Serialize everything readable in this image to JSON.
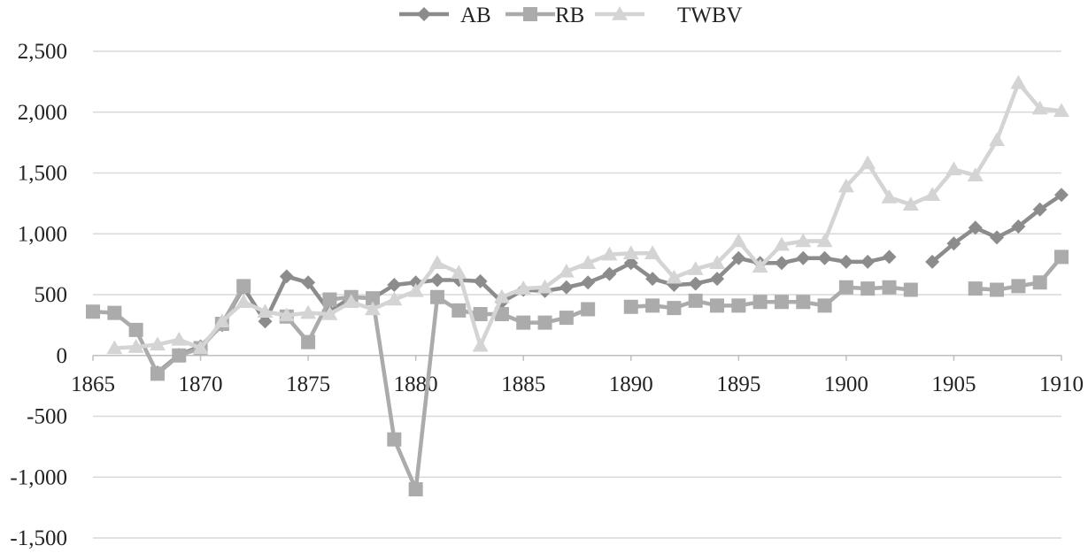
{
  "chart_data": {
    "type": "line",
    "xlim": [
      1865,
      1910
    ],
    "ylim": [
      -1500,
      2500
    ],
    "x_ticks": [
      1865,
      1870,
      1875,
      1880,
      1885,
      1890,
      1895,
      1900,
      1905,
      1910
    ],
    "x_tick_labels": [
      "1865",
      "1870",
      "1875",
      "1880",
      "1885",
      "1890",
      "1895",
      "1900",
      "1905",
      "1910"
    ],
    "y_ticks": [
      -1500,
      -1000,
      -500,
      0,
      500,
      1000,
      1500,
      2000,
      2500
    ],
    "y_tick_labels": [
      "-1,500",
      "-1,000",
      "-500",
      "0",
      "500",
      "1,000",
      "1,500",
      "2,000",
      "2,500"
    ],
    "grid": "horizontal",
    "legend_position": "top-center",
    "series": [
      {
        "name": "AB",
        "marker": "diamond",
        "color": "#8c8c8c",
        "points": [
          [
            1868,
            -140
          ],
          [
            1869,
            5
          ],
          [
            1870,
            75
          ],
          [
            1871,
            250
          ],
          [
            1872,
            560
          ],
          [
            1873,
            280
          ],
          [
            1874,
            650
          ],
          [
            1875,
            600
          ],
          [
            1876,
            360
          ],
          [
            1877,
            480
          ],
          [
            1878,
            470
          ],
          [
            1879,
            580
          ],
          [
            1880,
            600
          ],
          [
            1881,
            620
          ],
          [
            1882,
            620
          ],
          [
            1883,
            610
          ],
          [
            1884,
            440
          ],
          [
            1885,
            540
          ],
          [
            1886,
            530
          ],
          [
            1887,
            560
          ],
          [
            1888,
            600
          ],
          [
            1889,
            670
          ],
          [
            1890,
            760
          ],
          [
            1891,
            630
          ],
          [
            1892,
            580
          ],
          [
            1893,
            590
          ],
          [
            1894,
            630
          ],
          [
            1895,
            800
          ],
          [
            1896,
            760
          ],
          [
            1897,
            760
          ],
          [
            1898,
            800
          ],
          [
            1899,
            800
          ],
          [
            1900,
            770
          ],
          [
            1901,
            770
          ],
          [
            1902,
            810
          ],
          null,
          [
            1904,
            770
          ],
          [
            1905,
            920
          ],
          [
            1906,
            1050
          ],
          [
            1907,
            970
          ],
          [
            1908,
            1060
          ],
          [
            1909,
            1200
          ],
          [
            1910,
            1320
          ]
        ]
      },
      {
        "name": "RB",
        "marker": "square",
        "color": "#ababab",
        "points": [
          [
            1865,
            360
          ],
          [
            1866,
            350
          ],
          [
            1867,
            210
          ],
          [
            1868,
            -150
          ],
          [
            1869,
            0
          ],
          [
            1870,
            60
          ],
          [
            1871,
            260
          ],
          [
            1872,
            570
          ],
          null,
          [
            1874,
            320
          ],
          [
            1875,
            110
          ],
          [
            1876,
            460
          ],
          [
            1877,
            480
          ],
          [
            1878,
            470
          ],
          [
            1879,
            -690
          ],
          [
            1880,
            -1100
          ],
          [
            1881,
            480
          ],
          [
            1882,
            370
          ],
          [
            1883,
            340
          ],
          [
            1884,
            340
          ],
          [
            1885,
            270
          ],
          [
            1886,
            270
          ],
          [
            1887,
            310
          ],
          [
            1888,
            380
          ],
          null,
          [
            1890,
            400
          ],
          [
            1891,
            410
          ],
          [
            1892,
            390
          ],
          [
            1893,
            450
          ],
          [
            1894,
            410
          ],
          [
            1895,
            410
          ],
          [
            1896,
            440
          ],
          [
            1897,
            440
          ],
          [
            1898,
            440
          ],
          [
            1899,
            410
          ],
          [
            1900,
            560
          ],
          [
            1901,
            550
          ],
          [
            1902,
            560
          ],
          [
            1903,
            540
          ],
          null,
          [
            1906,
            550
          ],
          [
            1907,
            540
          ],
          [
            1908,
            570
          ],
          [
            1909,
            600
          ],
          [
            1910,
            810
          ]
        ]
      },
      {
        "name": "TWBV",
        "marker": "triangle",
        "color": "#d4d4d4",
        "points": [
          [
            1866,
            60
          ],
          [
            1867,
            70
          ],
          [
            1868,
            90
          ],
          [
            1869,
            130
          ],
          [
            1870,
            60
          ],
          [
            1871,
            280
          ],
          [
            1872,
            440
          ],
          [
            1873,
            360
          ],
          [
            1874,
            330
          ],
          [
            1875,
            350
          ],
          [
            1876,
            340
          ],
          [
            1877,
            440
          ],
          [
            1878,
            380
          ],
          [
            1879,
            460
          ],
          [
            1880,
            530
          ],
          [
            1881,
            760
          ],
          [
            1882,
            680
          ],
          [
            1883,
            80
          ],
          [
            1884,
            480
          ],
          [
            1885,
            550
          ],
          [
            1886,
            560
          ],
          [
            1887,
            690
          ],
          [
            1888,
            760
          ],
          [
            1889,
            830
          ],
          [
            1890,
            840
          ],
          [
            1891,
            840
          ],
          [
            1892,
            640
          ],
          [
            1893,
            710
          ],
          [
            1894,
            760
          ],
          [
            1895,
            940
          ],
          [
            1896,
            730
          ],
          [
            1897,
            910
          ],
          [
            1898,
            940
          ],
          [
            1899,
            940
          ],
          [
            1900,
            1390
          ],
          [
            1901,
            1580
          ],
          [
            1902,
            1300
          ],
          [
            1903,
            1240
          ],
          [
            1904,
            1320
          ],
          [
            1905,
            1530
          ],
          [
            1906,
            1480
          ],
          [
            1907,
            1770
          ],
          [
            1908,
            2240
          ],
          [
            1909,
            2030
          ],
          [
            1910,
            2010
          ]
        ]
      }
    ]
  }
}
